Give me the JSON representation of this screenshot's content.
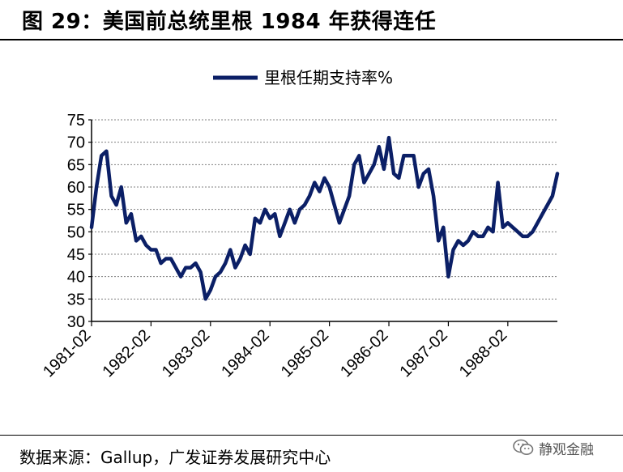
{
  "header": {
    "title": "图 29：美国前总统里根 1984 年获得连任"
  },
  "footer": {
    "source": "数据来源：Gallup，广发证券发展研究中心",
    "watermark_text": "静观金融",
    "watermark_icon": "wechat-icon"
  },
  "colors": {
    "series": "#0b1f66",
    "grid": "#7f7f7f",
    "axis": "#000000"
  },
  "chart_data": {
    "type": "line",
    "title": "",
    "xlabel": "",
    "ylabel": "",
    "ylim": [
      30,
      75
    ],
    "yticks": [
      30,
      35,
      40,
      45,
      50,
      55,
      60,
      65,
      70,
      75
    ],
    "xlim": [
      "1981-02",
      "1988-12"
    ],
    "xticks": [
      "1981-02",
      "1982-02",
      "1983-02",
      "1984-02",
      "1985-02",
      "1986-02",
      "1987-02",
      "1988-02"
    ],
    "grid": "horizontal dashed",
    "legend_position": "top-center",
    "series": [
      {
        "name": "里根任期支持率%",
        "points": [
          [
            "1981-02",
            51
          ],
          [
            "1981-03",
            60
          ],
          [
            "1981-04",
            67
          ],
          [
            "1981-05",
            68
          ],
          [
            "1981-06",
            58
          ],
          [
            "1981-07",
            56
          ],
          [
            "1981-08",
            60
          ],
          [
            "1981-09",
            52
          ],
          [
            "1981-10",
            54
          ],
          [
            "1981-11",
            48
          ],
          [
            "1981-12",
            49
          ],
          [
            "1982-01",
            47
          ],
          [
            "1982-02",
            46
          ],
          [
            "1982-03",
            46
          ],
          [
            "1982-04",
            43
          ],
          [
            "1982-05",
            44
          ],
          [
            "1982-06",
            44
          ],
          [
            "1982-07",
            42
          ],
          [
            "1982-08",
            40
          ],
          [
            "1982-09",
            42
          ],
          [
            "1982-10",
            42
          ],
          [
            "1982-11",
            43
          ],
          [
            "1982-12",
            41
          ],
          [
            "1983-01",
            35
          ],
          [
            "1983-02",
            37
          ],
          [
            "1983-03",
            40
          ],
          [
            "1983-04",
            41
          ],
          [
            "1983-05",
            43
          ],
          [
            "1983-06",
            46
          ],
          [
            "1983-07",
            42
          ],
          [
            "1983-08",
            44
          ],
          [
            "1983-09",
            47
          ],
          [
            "1983-10",
            45
          ],
          [
            "1983-11",
            53
          ],
          [
            "1983-12",
            52
          ],
          [
            "1984-01",
            55
          ],
          [
            "1984-02",
            53
          ],
          [
            "1984-03",
            54
          ],
          [
            "1984-04",
            49
          ],
          [
            "1984-05",
            52
          ],
          [
            "1984-06",
            55
          ],
          [
            "1984-07",
            52
          ],
          [
            "1984-08",
            55
          ],
          [
            "1984-09",
            56
          ],
          [
            "1984-10",
            58
          ],
          [
            "1984-11",
            61
          ],
          [
            "1984-12",
            59
          ],
          [
            "1985-01",
            62
          ],
          [
            "1985-02",
            60
          ],
          [
            "1985-03",
            56
          ],
          [
            "1985-04",
            52
          ],
          [
            "1985-05",
            55
          ],
          [
            "1985-06",
            58
          ],
          [
            "1985-07",
            65
          ],
          [
            "1985-08",
            67
          ],
          [
            "1985-09",
            61
          ],
          [
            "1985-10",
            63
          ],
          [
            "1985-11",
            65
          ],
          [
            "1985-12",
            69
          ],
          [
            "1986-01",
            64
          ],
          [
            "1986-02",
            71
          ],
          [
            "1986-03",
            63
          ],
          [
            "1986-04",
            62
          ],
          [
            "1986-05",
            67
          ],
          [
            "1986-06",
            67
          ],
          [
            "1986-07",
            67
          ],
          [
            "1986-08",
            60
          ],
          [
            "1986-09",
            63
          ],
          [
            "1986-10",
            64
          ],
          [
            "1986-11",
            58
          ],
          [
            "1986-12",
            48
          ],
          [
            "1987-01",
            51
          ],
          [
            "1987-02",
            40
          ],
          [
            "1987-03",
            46
          ],
          [
            "1987-04",
            48
          ],
          [
            "1987-05",
            47
          ],
          [
            "1987-06",
            48
          ],
          [
            "1987-07",
            50
          ],
          [
            "1987-08",
            49
          ],
          [
            "1987-09",
            49
          ],
          [
            "1987-10",
            51
          ],
          [
            "1987-11",
            50
          ],
          [
            "1987-12",
            61
          ],
          [
            "1988-01",
            51
          ],
          [
            "1988-02",
            52
          ],
          [
            "1988-03",
            51
          ],
          [
            "1988-04",
            50
          ],
          [
            "1988-05",
            49
          ],
          [
            "1988-06",
            49
          ],
          [
            "1988-07",
            50
          ],
          [
            "1988-08",
            52
          ],
          [
            "1988-09",
            54
          ],
          [
            "1988-10",
            56
          ],
          [
            "1988-11",
            58
          ],
          [
            "1988-12",
            63
          ]
        ]
      }
    ]
  }
}
